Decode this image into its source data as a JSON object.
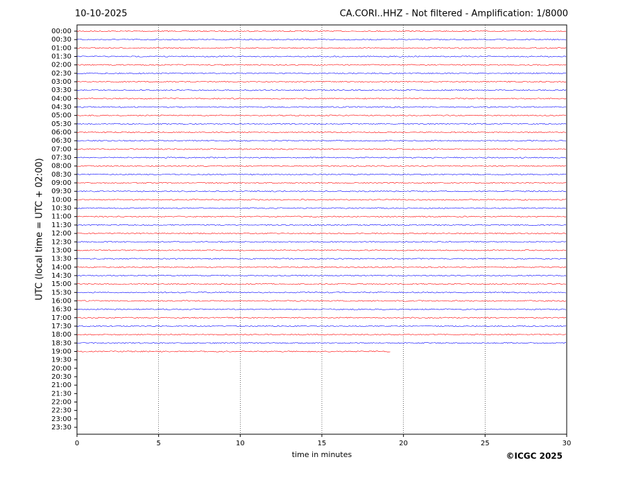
{
  "chart_data": {
    "type": "helicorder",
    "date": "10-10-2025",
    "title": "CA.CORI..HHZ - Not filtered - Amplification: 1/8000",
    "x_label": "time in minutes",
    "y_label": "UTC (local time = UTC + 02:00)",
    "footer": "©ICGC 2025",
    "categories": [
      "00:00",
      "00:30",
      "01:00",
      "01:30",
      "02:00",
      "02:30",
      "03:00",
      "03:30",
      "04:00",
      "04:30",
      "05:00",
      "05:30",
      "06:00",
      "06:30",
      "07:00",
      "07:30",
      "08:00",
      "08:30",
      "09:00",
      "09:30",
      "10:00",
      "10:30",
      "11:00",
      "11:30",
      "12:00",
      "12:30",
      "13:00",
      "13:30",
      "14:00",
      "14:30",
      "15:00",
      "15:30",
      "16:00",
      "16:30",
      "17:00",
      "17:30",
      "18:00",
      "18:30",
      "19:00",
      "19:30",
      "20:00",
      "20:30",
      "21:00",
      "21:30",
      "22:00",
      "22:30",
      "23:00",
      "23:30"
    ],
    "colors": [
      "#ff0000",
      "#0000ff"
    ],
    "last_trace": "19:00",
    "last_trace_end": 19.2,
    "xlim": [
      0,
      30
    ],
    "xticks": [
      0,
      5,
      10,
      15,
      20,
      25,
      30
    ],
    "grid": true
  }
}
